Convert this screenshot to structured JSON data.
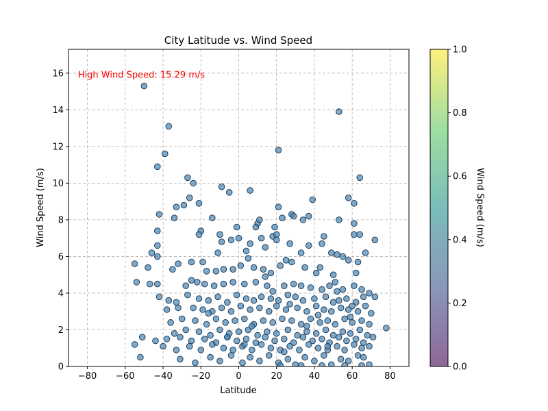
{
  "chart_data": {
    "type": "scatter",
    "title": "City Latitude vs. Wind Speed",
    "xlabel": "Latitude",
    "ylabel": "Wind Speed (m/s)",
    "xlim": [
      -90,
      90
    ],
    "ylim": [
      0,
      17.3
    ],
    "xticks": [
      -80,
      -60,
      -40,
      -20,
      0,
      20,
      40,
      60,
      80
    ],
    "yticks": [
      0,
      2,
      4,
      6,
      8,
      10,
      12,
      14,
      16
    ],
    "grid": true,
    "point_color": "#4a84b0",
    "point_edge_color": "#1f3f5f",
    "annotation": {
      "text": "High Wind Speed: 15.29 m/s",
      "color": "#ff0000",
      "x": -85,
      "y": 15.9
    },
    "colorbar": {
      "label": "Wind Speed (m/s)",
      "ticks": [
        "0.0",
        "0.2",
        "0.4",
        "0.6",
        "0.8",
        "1.0"
      ],
      "colormap": "viridis",
      "alpha": 0.6
    },
    "points": [
      [
        -50,
        15.3
      ],
      [
        53,
        13.9
      ],
      [
        -37,
        13.1
      ],
      [
        -39,
        11.6
      ],
      [
        21,
        11.8
      ],
      [
        -43,
        10.9
      ],
      [
        -27,
        10.3
      ],
      [
        -24,
        10.0
      ],
      [
        64,
        10.3
      ],
      [
        -9,
        9.8
      ],
      [
        -5,
        9.5
      ],
      [
        6,
        9.6
      ],
      [
        -26,
        9.2
      ],
      [
        -21,
        8.9
      ],
      [
        39,
        9.1
      ],
      [
        58,
        9.2
      ],
      [
        61,
        8.9
      ],
      [
        -33,
        8.7
      ],
      [
        -29,
        8.8
      ],
      [
        -42,
        8.3
      ],
      [
        -34,
        8.1
      ],
      [
        -14,
        8.1
      ],
      [
        21,
        8.7
      ],
      [
        28,
        8.3
      ],
      [
        29,
        8.2
      ],
      [
        34,
        8.0
      ],
      [
        37,
        8.2
      ],
      [
        53,
        8.0
      ],
      [
        61,
        7.8
      ],
      [
        10,
        7.8
      ],
      [
        11,
        8.0
      ],
      [
        23,
        8.1
      ],
      [
        -43,
        7.4
      ],
      [
        -20,
        7.4
      ],
      [
        -21,
        7.2
      ],
      [
        -10,
        7.2
      ],
      [
        -1,
        7.6
      ],
      [
        0,
        7.0
      ],
      [
        9,
        7.6
      ],
      [
        12,
        7.0
      ],
      [
        18,
        7.1
      ],
      [
        19,
        7.6
      ],
      [
        20,
        7.2
      ],
      [
        45,
        7.1
      ],
      [
        49,
        6.2
      ],
      [
        61,
        7.2
      ],
      [
        64,
        7.2
      ],
      [
        72,
        6.9
      ],
      [
        -9,
        6.8
      ],
      [
        -11,
        6.2
      ],
      [
        -4,
        6.9
      ],
      [
        4,
        6.3
      ],
      [
        6,
        6.7
      ],
      [
        14,
        6.5
      ],
      [
        20,
        6.9
      ],
      [
        27,
        6.7
      ],
      [
        33,
        6.2
      ],
      [
        37,
        6.6
      ],
      [
        44,
        6.7
      ],
      [
        52,
        6.1
      ],
      [
        67,
        6.2
      ],
      [
        -43,
        6.6
      ],
      [
        -46,
        6.2
      ],
      [
        -43,
        6.0
      ],
      [
        -55,
        5.6
      ],
      [
        -48,
        5.4
      ],
      [
        -35,
        5.3
      ],
      [
        -32,
        5.6
      ],
      [
        -25,
        5.7
      ],
      [
        -19,
        5.7
      ],
      [
        -17,
        5.2
      ],
      [
        -12,
        5.2
      ],
      [
        -8,
        5.3
      ],
      [
        -3,
        5.3
      ],
      [
        1,
        5.5
      ],
      [
        5,
        5.9
      ],
      [
        8,
        5.4
      ],
      [
        13,
        5.3
      ],
      [
        17,
        5.1
      ],
      [
        22,
        5.5
      ],
      [
        25,
        5.8
      ],
      [
        28,
        5.7
      ],
      [
        35,
        5.4
      ],
      [
        41,
        5.1
      ],
      [
        43,
        5.4
      ],
      [
        50,
        5.0
      ],
      [
        55,
        6.0
      ],
      [
        58,
        5.8
      ],
      [
        62,
        5.1
      ],
      [
        63,
        5.7
      ],
      [
        -54,
        4.6
      ],
      [
        -47,
        4.5
      ],
      [
        -43,
        4.5
      ],
      [
        -28,
        4.4
      ],
      [
        -25,
        4.7
      ],
      [
        -22,
        4.6
      ],
      [
        -18,
        4.5
      ],
      [
        -13,
        4.4
      ],
      [
        -8,
        4.5
      ],
      [
        -3,
        4.6
      ],
      [
        3,
        4.5
      ],
      [
        9,
        4.6
      ],
      [
        15,
        4.4
      ],
      [
        24,
        4.4
      ],
      [
        29,
        4.5
      ],
      [
        33,
        4.4
      ],
      [
        38,
        4.3
      ],
      [
        44,
        4.2
      ],
      [
        48,
        4.4
      ],
      [
        52,
        4.1
      ],
      [
        55,
        4.2
      ],
      [
        61,
        4.4
      ],
      [
        65,
        4.2
      ],
      [
        69,
        4.0
      ],
      [
        -42,
        3.8
      ],
      [
        -37,
        3.6
      ],
      [
        -33,
        3.5
      ],
      [
        -27,
        3.9
      ],
      [
        -21,
        3.7
      ],
      [
        -16,
        3.6
      ],
      [
        -11,
        3.8
      ],
      [
        -6,
        3.5
      ],
      [
        -1,
        3.9
      ],
      [
        4,
        3.7
      ],
      [
        8,
        3.6
      ],
      [
        12,
        3.8
      ],
      [
        17,
        3.7
      ],
      [
        21,
        3.6
      ],
      [
        26,
        3.9
      ],
      [
        30,
        3.8
      ],
      [
        34,
        3.6
      ],
      [
        40,
        3.7
      ],
      [
        46,
        3.8
      ],
      [
        50,
        3.5
      ],
      [
        53,
        3.6
      ],
      [
        57,
        3.7
      ],
      [
        62,
        3.5
      ],
      [
        66,
        3.8
      ],
      [
        72,
        3.8
      ],
      [
        -38,
        3.1
      ],
      [
        -32,
        3.2
      ],
      [
        -24,
        3.2
      ],
      [
        -19,
        3.1
      ],
      [
        -14,
        3.0
      ],
      [
        -9,
        3.2
      ],
      [
        -4,
        3.0
      ],
      [
        1,
        3.3
      ],
      [
        6,
        3.1
      ],
      [
        11,
        3.2
      ],
      [
        16,
        3.0
      ],
      [
        20,
        3.3
      ],
      [
        25,
        3.1
      ],
      [
        31,
        3.2
      ],
      [
        36,
        3.0
      ],
      [
        41,
        3.3
      ],
      [
        45,
        3.1
      ],
      [
        49,
        3.0
      ],
      [
        54,
        3.2
      ],
      [
        58,
        3.1
      ],
      [
        63,
        3.0
      ],
      [
        67,
        3.3
      ],
      [
        70,
        2.9
      ],
      [
        -36,
        2.4
      ],
      [
        -30,
        2.6
      ],
      [
        -23,
        2.5
      ],
      [
        -17,
        2.3
      ],
      [
        -12,
        2.6
      ],
      [
        -7,
        2.4
      ],
      [
        -2,
        2.5
      ],
      [
        3,
        2.6
      ],
      [
        8,
        2.3
      ],
      [
        13,
        2.5
      ],
      [
        18,
        2.4
      ],
      [
        23,
        2.6
      ],
      [
        28,
        2.5
      ],
      [
        33,
        2.3
      ],
      [
        38,
        2.6
      ],
      [
        43,
        2.4
      ],
      [
        47,
        2.5
      ],
      [
        51,
        2.3
      ],
      [
        56,
        2.6
      ],
      [
        60,
        2.4
      ],
      [
        65,
        2.5
      ],
      [
        69,
        2.3
      ],
      [
        78,
        2.1
      ],
      [
        -34,
        1.8
      ],
      [
        -28,
        2.0
      ],
      [
        -21,
        1.9
      ],
      [
        -15,
        1.7
      ],
      [
        -10,
        2.0
      ],
      [
        -5,
        1.8
      ],
      [
        0,
        1.9
      ],
      [
        5,
        2.0
      ],
      [
        10,
        1.7
      ],
      [
        15,
        1.9
      ],
      [
        20,
        1.8
      ],
      [
        26,
        2.0
      ],
      [
        31,
        1.7
      ],
      [
        36,
        1.9
      ],
      [
        41,
        1.8
      ],
      [
        46,
        2.0
      ],
      [
        50,
        1.7
      ],
      [
        55,
        1.9
      ],
      [
        59,
        1.8
      ],
      [
        64,
        2.0
      ],
      [
        68,
        1.7
      ],
      [
        -51,
        1.6
      ],
      [
        -44,
        1.4
      ],
      [
        -38,
        1.5
      ],
      [
        -31,
        1.6
      ],
      [
        -25,
        1.4
      ],
      [
        -18,
        1.5
      ],
      [
        -12,
        1.3
      ],
      [
        -6,
        1.6
      ],
      [
        -1,
        1.4
      ],
      [
        4,
        1.5
      ],
      [
        9,
        1.3
      ],
      [
        14,
        1.6
      ],
      [
        19,
        1.4
      ],
      [
        24,
        1.5
      ],
      [
        29,
        1.3
      ],
      [
        34,
        1.6
      ],
      [
        39,
        1.4
      ],
      [
        44,
        1.5
      ],
      [
        48,
        1.3
      ],
      [
        53,
        1.6
      ],
      [
        57,
        1.4
      ],
      [
        62,
        1.5
      ],
      [
        66,
        1.3
      ],
      [
        71,
        1.6
      ],
      [
        -55,
        1.2
      ],
      [
        -40,
        1.1
      ],
      [
        -33,
        0.9
      ],
      [
        -26,
        1.1
      ],
      [
        -20,
        0.9
      ],
      [
        -14,
        1.2
      ],
      [
        -8,
        1.0
      ],
      [
        -3,
        0.9
      ],
      [
        2,
        1.1
      ],
      [
        7,
        0.9
      ],
      [
        12,
        1.2
      ],
      [
        17,
        1.0
      ],
      [
        22,
        0.9
      ],
      [
        27,
        1.1
      ],
      [
        32,
        0.9
      ],
      [
        37,
        1.2
      ],
      [
        42,
        1.0
      ],
      [
        47,
        0.9
      ],
      [
        52,
        1.1
      ],
      [
        56,
        0.9
      ],
      [
        61,
        1.2
      ],
      [
        65,
        1.0
      ],
      [
        69,
        1.1
      ],
      [
        -52,
        0.5
      ],
      [
        -31,
        0.4
      ],
      [
        -23,
        0.2
      ],
      [
        -15,
        0.5
      ],
      [
        -10,
        0.3
      ],
      [
        -4,
        0.6
      ],
      [
        2,
        0.2
      ],
      [
        6,
        0.5
      ],
      [
        11,
        0.3
      ],
      [
        16,
        0.6
      ],
      [
        21,
        0.2
      ],
      [
        26,
        0.4
      ],
      [
        30,
        0.1
      ],
      [
        35,
        0.5
      ],
      [
        40,
        0.3
      ],
      [
        45,
        0.6
      ],
      [
        49,
        0.1
      ],
      [
        54,
        0.4
      ],
      [
        58,
        0.3
      ],
      [
        63,
        0.6
      ],
      [
        66,
        0.5
      ],
      [
        69,
        0.1
      ],
      [
        22,
        0.05
      ],
      [
        33,
        0.05
      ],
      [
        44,
        0.05
      ],
      [
        56,
        0.05
      ],
      [
        65,
        0.05
      ],
      [
        -6,
        1.6
      ],
      [
        18,
        4.1
      ],
      [
        7,
        2.2
      ],
      [
        27,
        3.4
      ],
      [
        42,
        2.8
      ],
      [
        51,
        4.6
      ],
      [
        60,
        3.3
      ],
      [
        14,
        4.9
      ],
      [
        -16,
        2.9
      ],
      [
        36,
        2.2
      ],
      [
        47,
        1.1
      ],
      [
        24,
        0.8
      ],
      [
        59,
        2.7
      ],
      [
        3,
        1.2
      ]
    ]
  }
}
